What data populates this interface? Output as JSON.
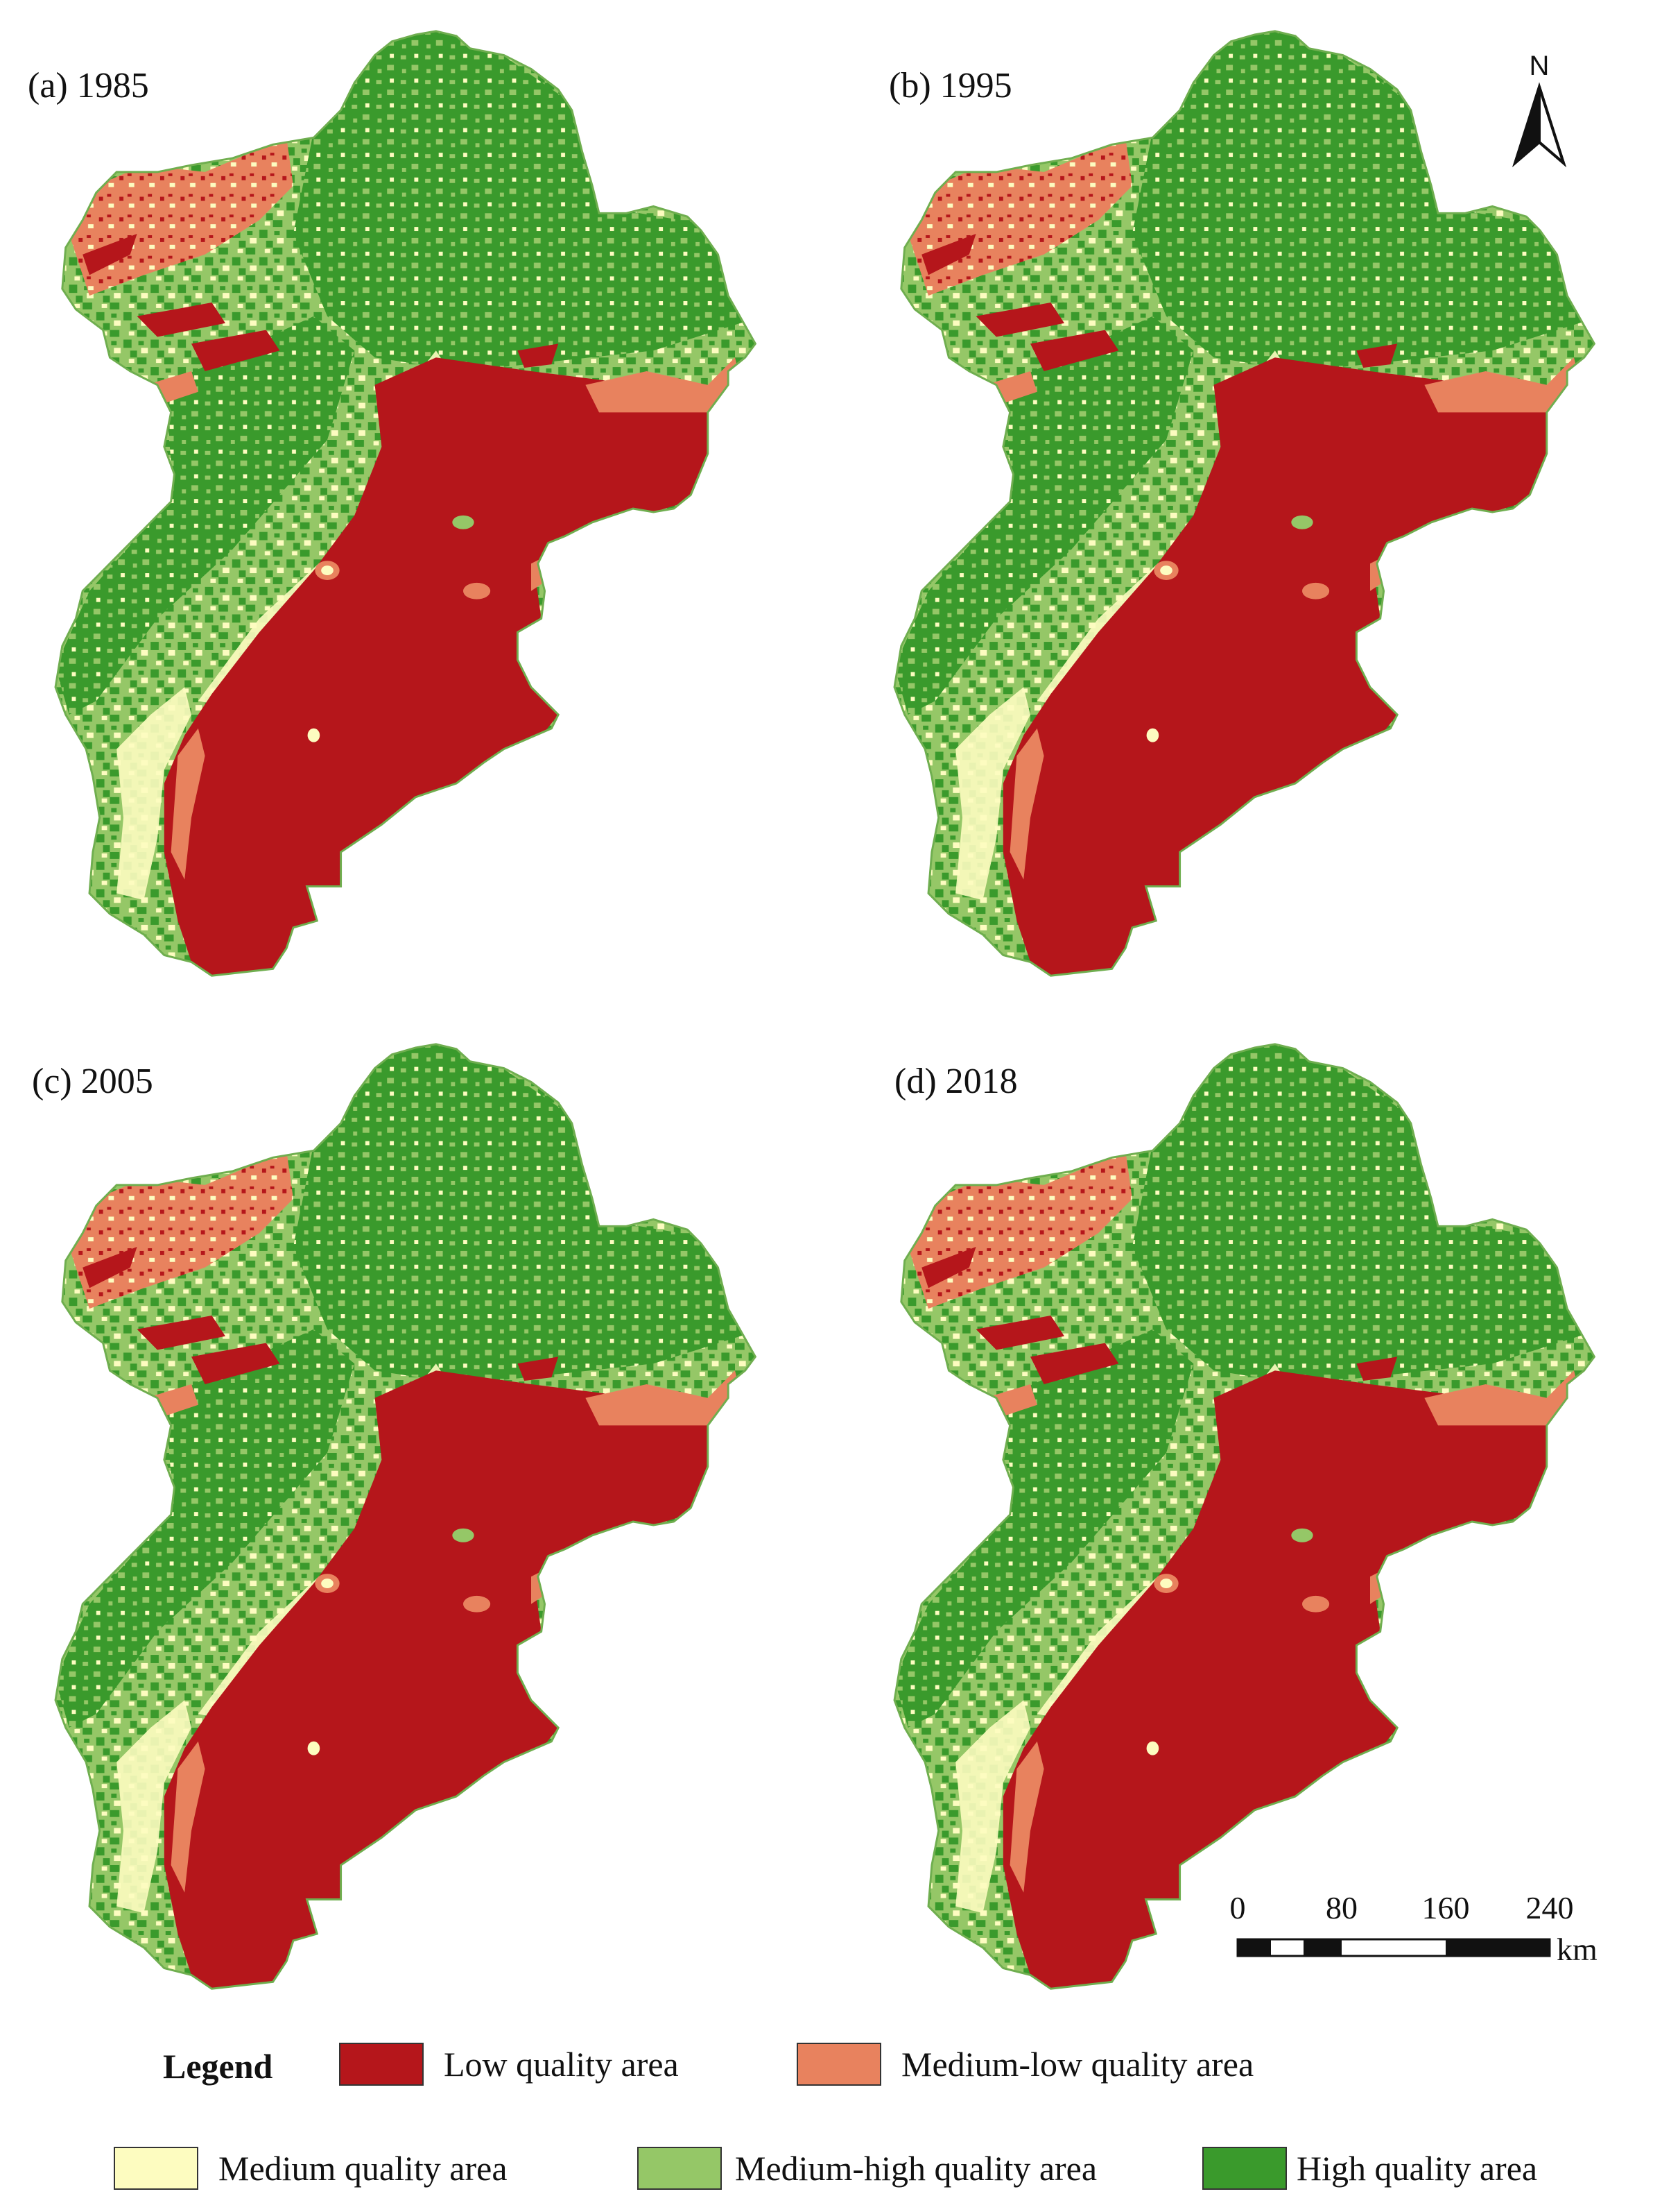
{
  "panels": [
    {
      "label": "(a) 1985"
    },
    {
      "label": "(b) 1995"
    },
    {
      "label": "(c) 2005"
    },
    {
      "label": "(d) 2018"
    }
  ],
  "north_arrow": {
    "label": "N"
  },
  "scale_bar": {
    "ticks": [
      "0",
      "80",
      "160",
      "240"
    ],
    "unit": "km"
  },
  "legend": {
    "title": "Legend",
    "items": [
      {
        "label": "Low quality area",
        "color": "#b5161b"
      },
      {
        "label": "Medium-low quality area",
        "color": "#e8825e"
      },
      {
        "label": "Medium quality area",
        "color": "#fdfcc0"
      },
      {
        "label": "Medium-high quality area",
        "color": "#95c767"
      },
      {
        "label": "High quality area",
        "color": "#3a9a2c"
      }
    ]
  }
}
